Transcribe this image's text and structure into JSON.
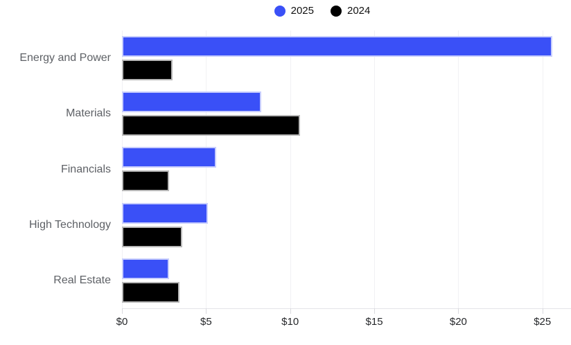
{
  "chart_data": {
    "type": "bar",
    "orientation": "horizontal",
    "title": "",
    "categories": [
      "Energy and Power",
      "Materials",
      "Financials",
      "High Technology",
      "Real Estate"
    ],
    "series": [
      {
        "name": "2025",
        "color": "#3a50f7",
        "values": [
          25.6,
          8.3,
          5.6,
          5.1,
          2.8
        ]
      },
      {
        "name": "2024",
        "color": "#000000",
        "values": [
          3.0,
          10.6,
          2.8,
          3.6,
          3.4
        ]
      }
    ],
    "x_axis": {
      "tick_values": [
        0,
        5,
        10,
        15,
        20,
        25
      ],
      "tick_labels": [
        "$0",
        "$5",
        "$10",
        "$15",
        "$20",
        "$25"
      ],
      "xlim": [
        0,
        26.7
      ],
      "unit": "$"
    },
    "grid": true,
    "legend_position": "top-center",
    "background": "#ffffff"
  },
  "colors": {
    "grid": "#f1f1f4",
    "axis_line": "#e4e4e8",
    "tick_mark": "#d9d9de",
    "category_text": "#5e6166",
    "tick_text": "#26282b",
    "legend_text": "#111111"
  }
}
